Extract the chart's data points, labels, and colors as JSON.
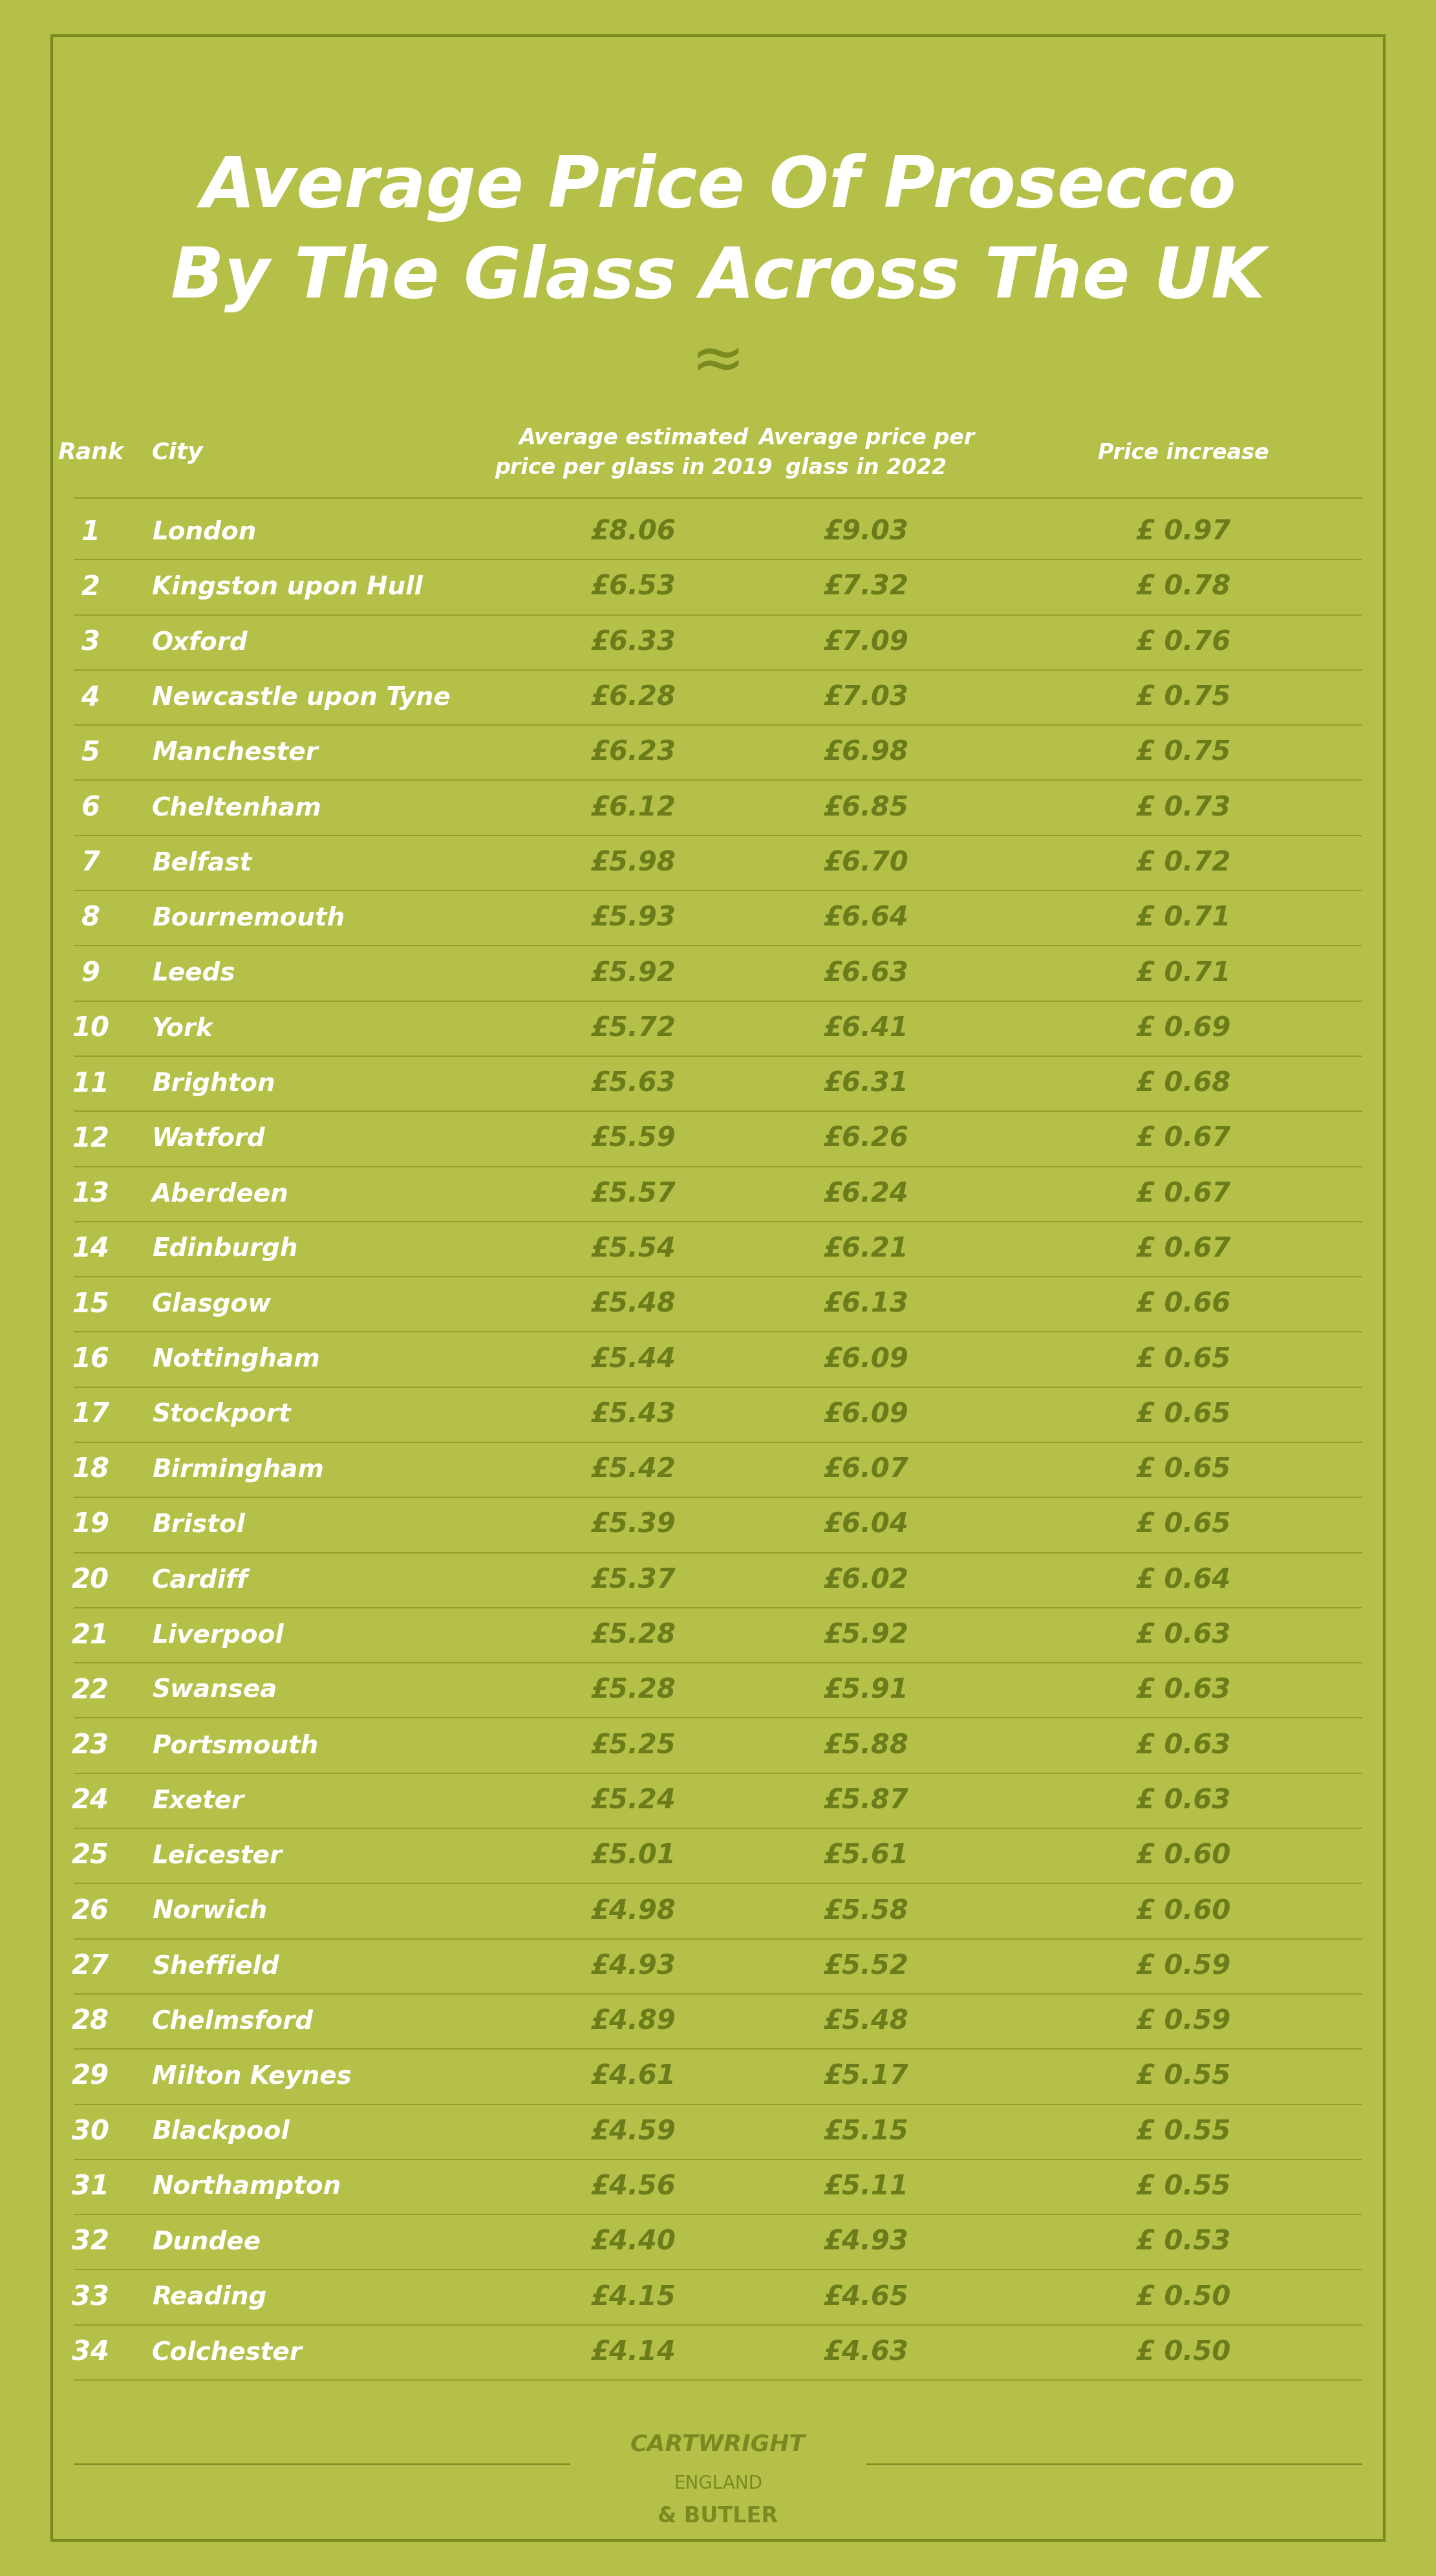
{
  "title_line1": "Average Price Of Prosecco",
  "title_line2": "By The Glass Across The UK",
  "bg_color": "#b5c048",
  "border_color": "#7a8a20",
  "title_color": "#ffffff",
  "header_color": "#ffffff",
  "rank_city_color": "#ffffff",
  "data_color": "#6b7c1a",
  "separator_color": "#8a9c25",
  "rows": [
    [
      1,
      "London",
      "£8.06",
      "£9.03",
      "£ 0.97"
    ],
    [
      2,
      "Kingston upon Hull",
      "£6.53",
      "£7.32",
      "£ 0.78"
    ],
    [
      3,
      "Oxford",
      "£6.33",
      "£7.09",
      "£ 0.76"
    ],
    [
      4,
      "Newcastle upon Tyne",
      "£6.28",
      "£7.03",
      "£ 0.75"
    ],
    [
      5,
      "Manchester",
      "£6.23",
      "£6.98",
      "£ 0.75"
    ],
    [
      6,
      "Cheltenham",
      "£6.12",
      "£6.85",
      "£ 0.73"
    ],
    [
      7,
      "Belfast",
      "£5.98",
      "£6.70",
      "£ 0.72"
    ],
    [
      8,
      "Bournemouth",
      "£5.93",
      "£6.64",
      "£ 0.71"
    ],
    [
      9,
      "Leeds",
      "£5.92",
      "£6.63",
      "£ 0.71"
    ],
    [
      10,
      "York",
      "£5.72",
      "£6.41",
      "£ 0.69"
    ],
    [
      11,
      "Brighton",
      "£5.63",
      "£6.31",
      "£ 0.68"
    ],
    [
      12,
      "Watford",
      "£5.59",
      "£6.26",
      "£ 0.67"
    ],
    [
      13,
      "Aberdeen",
      "£5.57",
      "£6.24",
      "£ 0.67"
    ],
    [
      14,
      "Edinburgh",
      "£5.54",
      "£6.21",
      "£ 0.67"
    ],
    [
      15,
      "Glasgow",
      "£5.48",
      "£6.13",
      "£ 0.66"
    ],
    [
      16,
      "Nottingham",
      "£5.44",
      "£6.09",
      "£ 0.65"
    ],
    [
      17,
      "Stockport",
      "£5.43",
      "£6.09",
      "£ 0.65"
    ],
    [
      18,
      "Birmingham",
      "£5.42",
      "£6.07",
      "£ 0.65"
    ],
    [
      19,
      "Bristol",
      "£5.39",
      "£6.04",
      "£ 0.65"
    ],
    [
      20,
      "Cardiff",
      "£5.37",
      "£6.02",
      "£ 0.64"
    ],
    [
      21,
      "Liverpool",
      "£5.28",
      "£5.92",
      "£ 0.63"
    ],
    [
      22,
      "Swansea",
      "£5.28",
      "£5.91",
      "£ 0.63"
    ],
    [
      23,
      "Portsmouth",
      "£5.25",
      "£5.88",
      "£ 0.63"
    ],
    [
      24,
      "Exeter",
      "£5.24",
      "£5.87",
      "£ 0.63"
    ],
    [
      25,
      "Leicester",
      "£5.01",
      "£5.61",
      "£ 0.60"
    ],
    [
      26,
      "Norwich",
      "£4.98",
      "£5.58",
      "£ 0.60"
    ],
    [
      27,
      "Sheffield",
      "£4.93",
      "£5.52",
      "£ 0.59"
    ],
    [
      28,
      "Chelmsford",
      "£4.89",
      "£5.48",
      "£ 0.59"
    ],
    [
      29,
      "Milton Keynes",
      "£4.61",
      "£5.17",
      "£ 0.55"
    ],
    [
      30,
      "Blackpool",
      "£4.59",
      "£5.15",
      "£ 0.55"
    ],
    [
      31,
      "Northampton",
      "£4.56",
      "£5.11",
      "£ 0.55"
    ],
    [
      32,
      "Dundee",
      "£4.40",
      "£4.93",
      "£ 0.53"
    ],
    [
      33,
      "Reading",
      "£4.15",
      "£4.65",
      "£ 0.50"
    ],
    [
      34,
      "Colchester",
      "£4.14",
      "£4.63",
      "£ 0.50"
    ]
  ]
}
